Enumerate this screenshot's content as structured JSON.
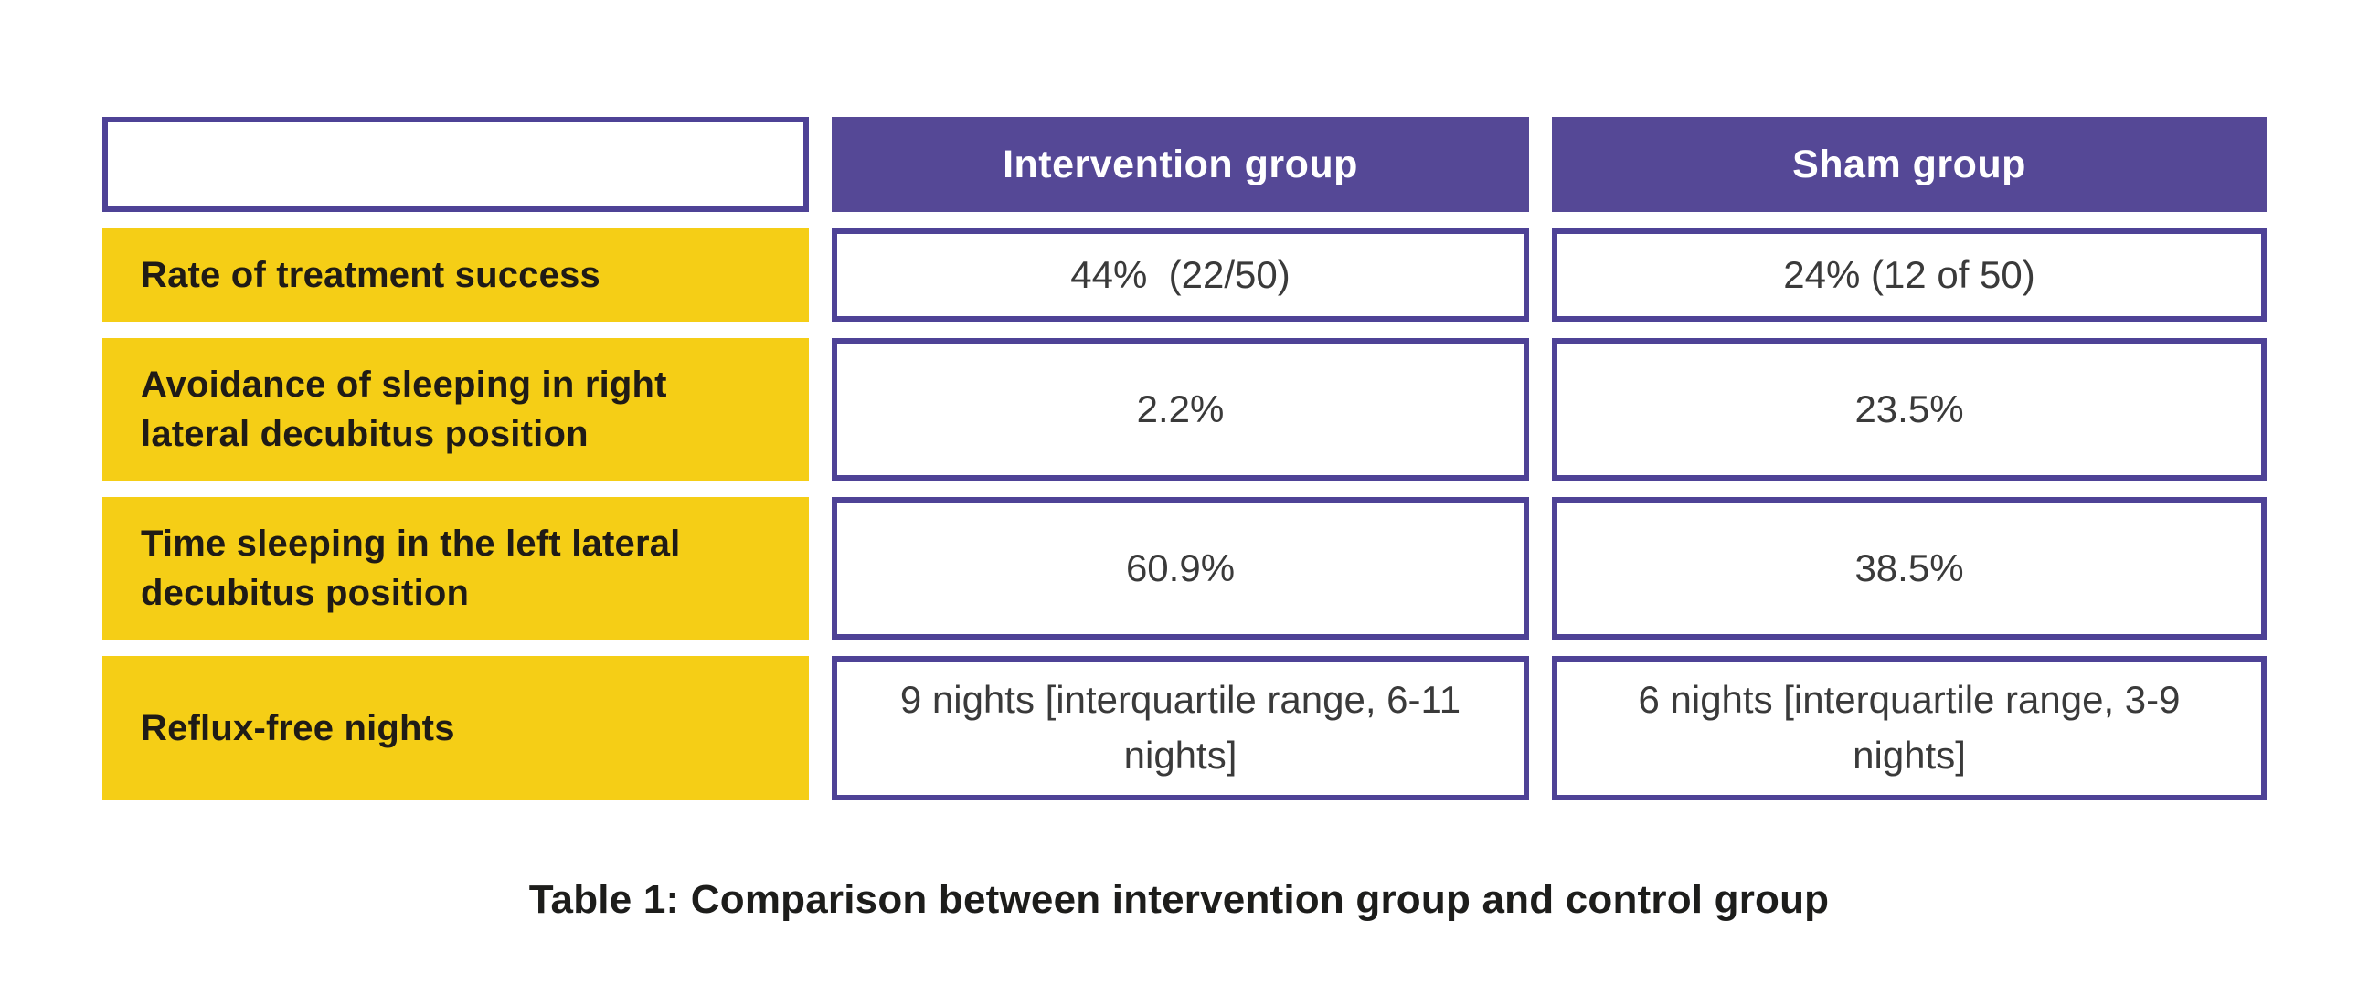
{
  "table": {
    "columns": [
      {
        "label": ""
      },
      {
        "label": "Intervention group"
      },
      {
        "label": "Sham group"
      }
    ],
    "rows": [
      {
        "label": "Rate of treatment success",
        "intervention": "44%  (22/50)",
        "sham": "24% (12 of 50)"
      },
      {
        "label": "Avoidance of sleeping in right lateral decubitus position",
        "intervention": "2.2%",
        "sham": "23.5%"
      },
      {
        "label": "Time sleeping in the left lateral decubitus position",
        "intervention": "60.9%",
        "sham": "38.5%"
      },
      {
        "label": "Reflux-free nights",
        "intervention": "9 nights [interquartile range, 6-11 nights]",
        "sham": "6 nights [interquartile range, 3-9 nights]"
      }
    ],
    "caption": "Table 1: Comparison between intervention group and control group"
  },
  "colors": {
    "page_bg": "#ffffff",
    "header_bg": "#554896",
    "header_text": "#ffffff",
    "row_label_bg": "#f5ce16",
    "label_text": "#1f1b16",
    "border": "#4e4296",
    "value_text": "#3a3a3a",
    "caption_text": "#1d1d1b"
  },
  "chart_data": {
    "type": "table",
    "title": "Table 1: Comparison between intervention group and control group",
    "columns": [
      "",
      "Intervention group",
      "Sham group"
    ],
    "rows": [
      [
        "Rate of treatment success",
        "44% (22/50)",
        "24% (12 of 50)"
      ],
      [
        "Avoidance of sleeping in right lateral decubitus position",
        "2.2%",
        "23.5%"
      ],
      [
        "Time sleeping in the left lateral decubitus position",
        "60.9%",
        "38.5%"
      ],
      [
        "Reflux-free nights",
        "9 nights [interquartile range, 6-11 nights]",
        "6 nights [interquartile range, 3-9 nights]"
      ]
    ],
    "legend_position": "none",
    "grid": false
  }
}
